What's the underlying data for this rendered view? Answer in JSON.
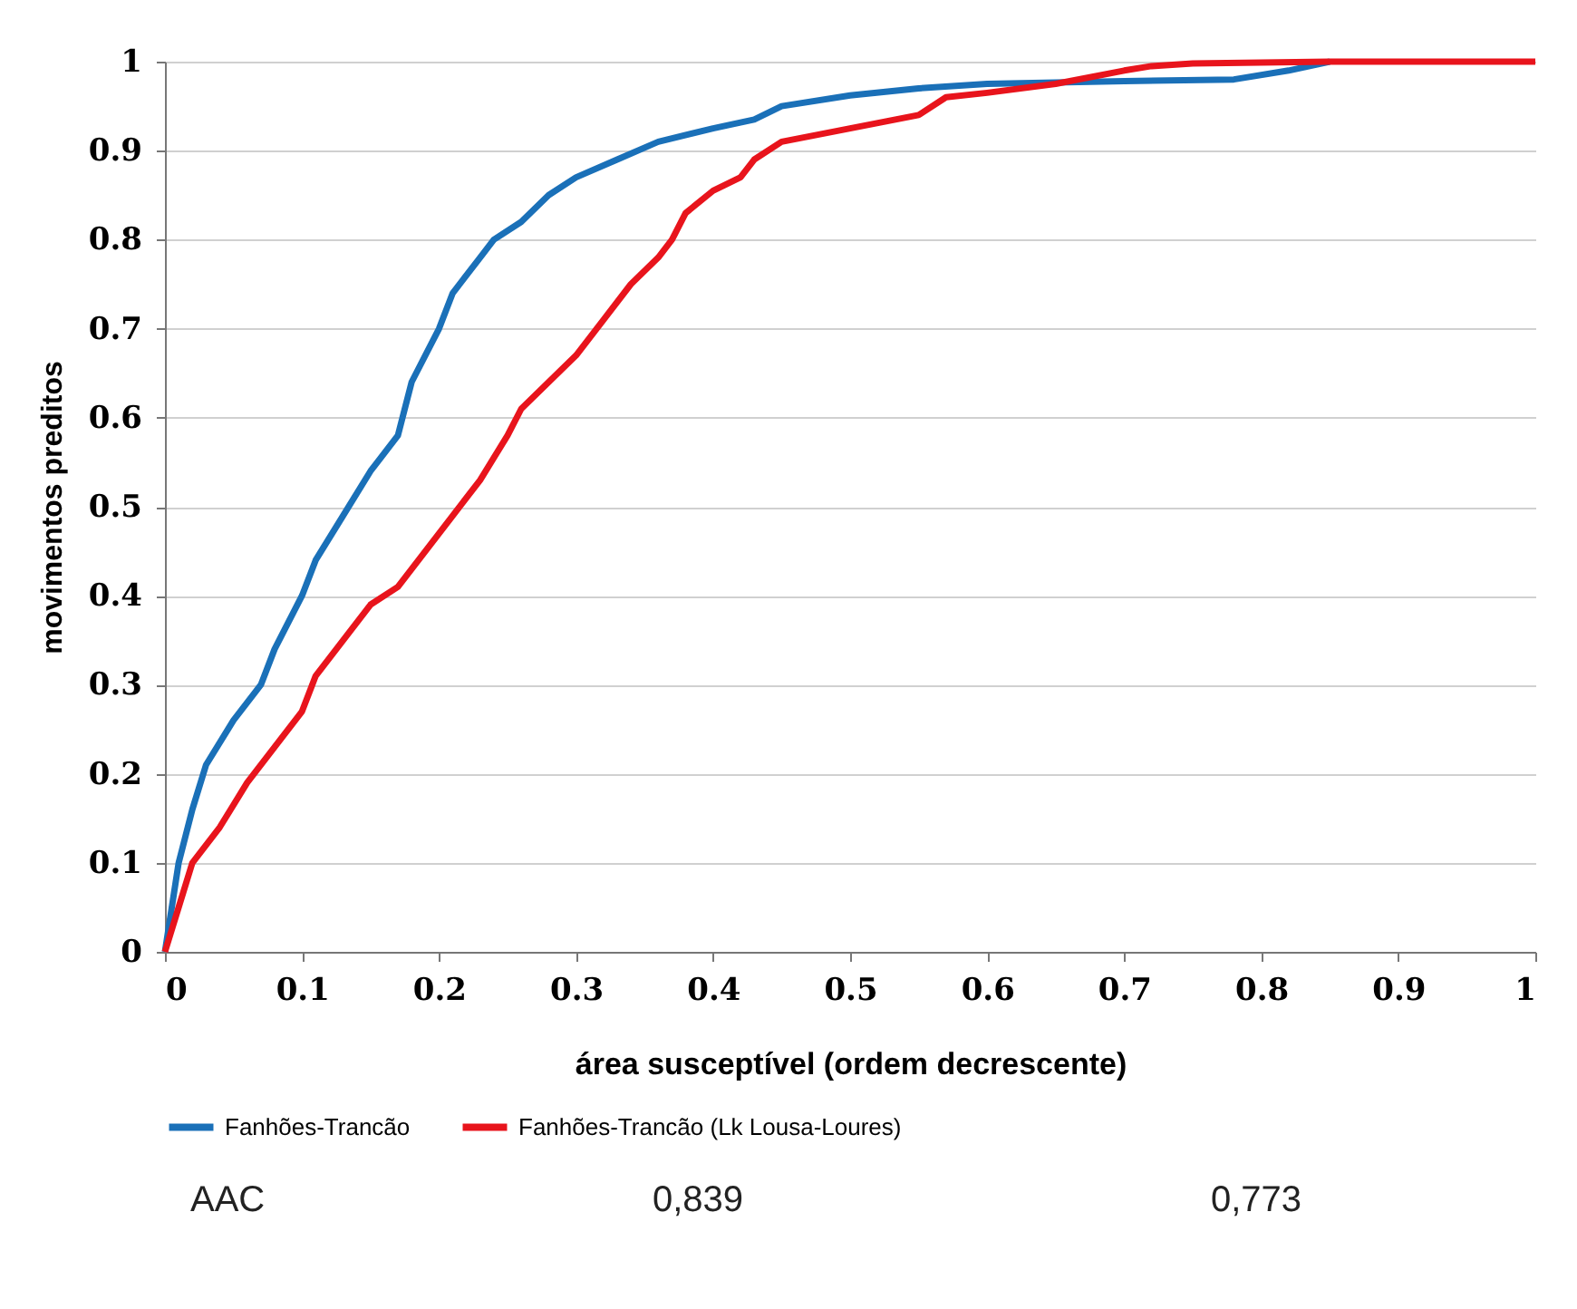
{
  "chart_data": {
    "type": "line",
    "xlabel": "área susceptível (ordem decrescente)",
    "ylabel": "movimentos preditos",
    "xlim": [
      0,
      1
    ],
    "xticks": [
      0,
      0.1,
      0.2,
      0.3,
      0.4,
      0.5,
      0.6,
      0.7,
      0.8,
      0.9,
      1
    ],
    "ylim": [
      0,
      1
    ],
    "yticks": [
      0,
      0.1,
      0.2,
      0.3,
      0.4,
      0.5,
      0.6,
      0.7,
      0.8,
      0.9,
      1
    ],
    "grid": "y",
    "legend": "bottom",
    "marker": "none",
    "line_style": "solid",
    "annotations": [
      "AAC",
      "0,839",
      "0,773"
    ],
    "series": [
      {
        "name": "Fanhões-Trancão",
        "color": "#1a70b8",
        "x": [
          0,
          0.01,
          0.02,
          0.03,
          0.05,
          0.07,
          0.08,
          0.1,
          0.11,
          0.13,
          0.15,
          0.17,
          0.18,
          0.2,
          0.21,
          0.23,
          0.24,
          0.26,
          0.28,
          0.3,
          0.33,
          0.36,
          0.4,
          0.43,
          0.45,
          0.5,
          0.55,
          0.6,
          0.7,
          0.78,
          0.82,
          0.85
        ],
        "values": [
          0,
          0.1,
          0.16,
          0.21,
          0.26,
          0.3,
          0.34,
          0.4,
          0.44,
          0.49,
          0.54,
          0.58,
          0.64,
          0.7,
          0.74,
          0.78,
          0.8,
          0.82,
          0.85,
          0.87,
          0.89,
          0.91,
          0.925,
          0.935,
          0.95,
          0.962,
          0.97,
          0.975,
          0.978,
          0.98,
          0.99,
          1
        ]
      },
      {
        "name": "Fanhões-Trancão (Lk Lousa-Loures)",
        "color": "#e8141c",
        "x": [
          0,
          0.01,
          0.02,
          0.04,
          0.06,
          0.08,
          0.1,
          0.11,
          0.13,
          0.15,
          0.17,
          0.19,
          0.21,
          0.23,
          0.25,
          0.26,
          0.28,
          0.3,
          0.32,
          0.34,
          0.36,
          0.37,
          0.38,
          0.4,
          0.42,
          0.43,
          0.45,
          0.5,
          0.55,
          0.57,
          0.6,
          0.65,
          0.7,
          0.72,
          0.75,
          0.85,
          1
        ],
        "values": [
          0,
          0.05,
          0.1,
          0.14,
          0.19,
          0.23,
          0.27,
          0.31,
          0.35,
          0.39,
          0.41,
          0.45,
          0.49,
          0.53,
          0.58,
          0.61,
          0.64,
          0.67,
          0.71,
          0.75,
          0.78,
          0.8,
          0.83,
          0.855,
          0.87,
          0.89,
          0.91,
          0.925,
          0.94,
          0.96,
          0.965,
          0.975,
          0.99,
          0.995,
          0.998,
          1,
          1
        ]
      }
    ]
  }
}
